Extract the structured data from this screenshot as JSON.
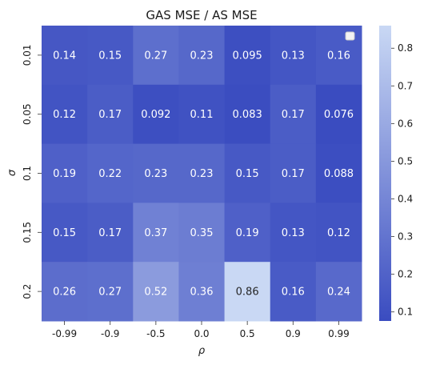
{
  "chart_data": {
    "type": "heatmap",
    "title": "GAS MSE / AS MSE",
    "xlabel": "ρ",
    "ylabel": "σ",
    "x_categories": [
      "-0.99",
      "-0.9",
      "-0.5",
      "0.0",
      "0.5",
      "0.9",
      "0.99"
    ],
    "y_categories": [
      "0.01",
      "0.05",
      "0.1",
      "0.15",
      "0.2"
    ],
    "values": [
      [
        0.14,
        0.15,
        0.27,
        0.23,
        0.095,
        0.13,
        0.16
      ],
      [
        0.12,
        0.17,
        0.092,
        0.11,
        0.083,
        0.17,
        0.076
      ],
      [
        0.19,
        0.22,
        0.23,
        0.23,
        0.15,
        0.17,
        0.088
      ],
      [
        0.15,
        0.17,
        0.37,
        0.35,
        0.19,
        0.13,
        0.12
      ],
      [
        0.26,
        0.27,
        0.52,
        0.36,
        0.86,
        0.16,
        0.24
      ]
    ],
    "cell_labels": [
      [
        "0.14",
        "0.15",
        "0.27",
        "0.23",
        "0.095",
        "0.13",
        "0.16"
      ],
      [
        "0.12",
        "0.17",
        "0.092",
        "0.11",
        "0.083",
        "0.17",
        "0.076"
      ],
      [
        "0.19",
        "0.22",
        "0.23",
        "0.23",
        "0.15",
        "0.17",
        "0.088"
      ],
      [
        "0.15",
        "0.17",
        "0.37",
        "0.35",
        "0.19",
        "0.13",
        "0.12"
      ],
      [
        "0.26",
        "0.27",
        "0.52",
        "0.36",
        "0.86",
        "0.16",
        "0.24"
      ]
    ],
    "colorbar": {
      "range": [
        0.076,
        0.86
      ],
      "ticks": [
        0.1,
        0.2,
        0.3,
        0.4,
        0.5,
        0.6,
        0.7,
        0.8
      ],
      "tick_labels": [
        "0.1",
        "0.2",
        "0.3",
        "0.4",
        "0.5",
        "0.6",
        "0.7",
        "0.8"
      ],
      "color_low": "#3a4cc0",
      "color_high": "#c9d8f4"
    },
    "legend": "top-right",
    "grid": false
  }
}
